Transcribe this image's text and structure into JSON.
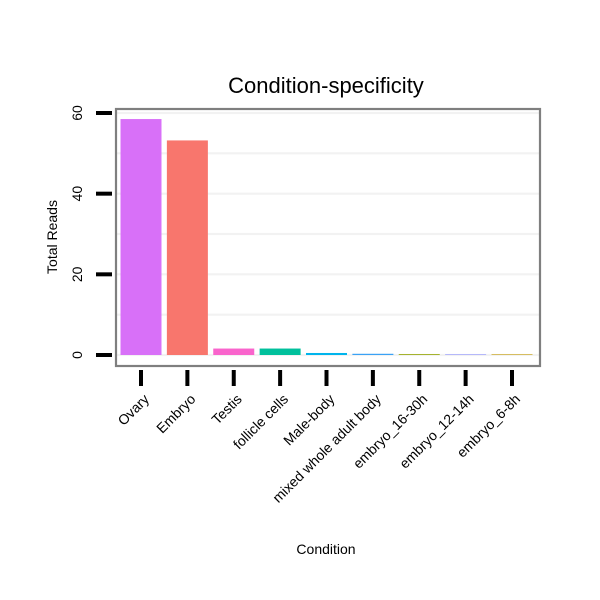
{
  "chart_data": {
    "type": "bar",
    "title": "Condition-specificity",
    "xlabel": "Condition",
    "ylabel": "Total Reads",
    "ylim": [
      0,
      62
    ],
    "yticks": [
      0,
      20,
      40,
      60
    ],
    "grid": true,
    "legend": "none",
    "categories": [
      "Ovary",
      "Embryo",
      "Testis",
      "follicle cells",
      "Male-body",
      "mixed whole adult body",
      "embryo_16-30h",
      "embryo_12-14h",
      "embryo_6-8h"
    ],
    "values": [
      58.5,
      53.2,
      1.6,
      1.6,
      0.5,
      0.3,
      0.2,
      0.05,
      0.05
    ],
    "colors": [
      "#d870f8",
      "#f8766d",
      "#f964cc",
      "#00c09c",
      "#00b4ec",
      "#3aa2f5",
      "#93a400",
      "#8d93ff",
      "#c49a00"
    ]
  }
}
